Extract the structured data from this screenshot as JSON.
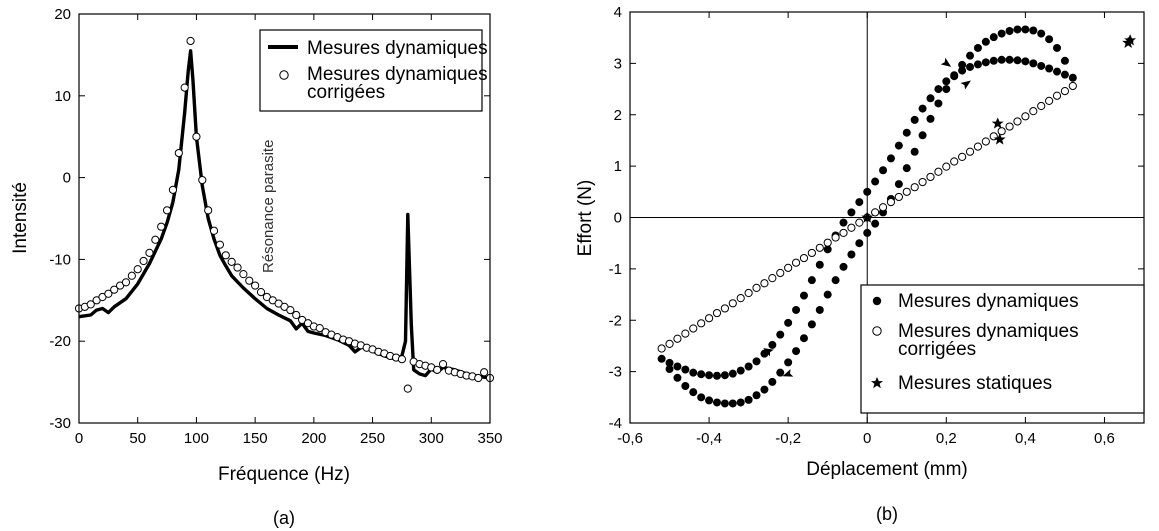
{
  "chart_data": [
    {
      "type": "line",
      "caption": "(a)",
      "xlabel": "Fréquence (Hz)",
      "ylabel": "Intensité",
      "xlim": [
        0,
        350
      ],
      "ylim": [
        -30,
        20
      ],
      "xticks": [
        "0",
        "50",
        "100",
        "150",
        "200",
        "250",
        "300",
        "350"
      ],
      "yticks": [
        "-30",
        "-20",
        "-10",
        "0",
        "10",
        "20"
      ],
      "legend_position": "top-right",
      "annotation": "Résonance parasite",
      "series": [
        {
          "name": "Mesures dynamiques",
          "style": "line",
          "x": [
            0,
            10,
            15,
            20,
            25,
            30,
            40,
            50,
            60,
            70,
            75,
            80,
            85,
            90,
            93,
            95,
            97,
            100,
            105,
            110,
            115,
            120,
            125,
            130,
            140,
            150,
            160,
            170,
            180,
            185,
            190,
            195,
            200,
            210,
            220,
            230,
            235,
            240,
            245,
            250,
            260,
            270,
            275,
            278,
            280,
            283,
            285,
            290,
            295,
            300,
            305,
            310,
            320,
            330,
            340,
            350
          ],
          "y": [
            -17,
            -16.8,
            -16.2,
            -16,
            -16.5,
            -15.8,
            -14.8,
            -13,
            -10.5,
            -7.5,
            -5.5,
            -3,
            1,
            8,
            13,
            15.5,
            12,
            5,
            -1,
            -5,
            -7.5,
            -9.5,
            -10.8,
            -12,
            -13.5,
            -14.8,
            -16,
            -16.8,
            -17.5,
            -18.5,
            -17.8,
            -18.8,
            -19,
            -19.3,
            -19.8,
            -20.5,
            -21.3,
            -20.8,
            -20.6,
            -21.2,
            -21.8,
            -22.2,
            -21.8,
            -20,
            -4.5,
            -18,
            -23.5,
            -24,
            -24.2,
            -23.4,
            -23.8,
            -23.2,
            -23.5,
            -24,
            -24.3,
            -24.5
          ]
        },
        {
          "name": "Mesures dynamiques corrigées",
          "style": "open-markers",
          "x": [
            0,
            5,
            10,
            15,
            20,
            25,
            30,
            35,
            40,
            45,
            50,
            55,
            60,
            65,
            70,
            75,
            80,
            85,
            90,
            95,
            100,
            105,
            110,
            115,
            120,
            125,
            130,
            135,
            140,
            145,
            150,
            155,
            160,
            165,
            170,
            175,
            180,
            185,
            190,
            195,
            200,
            205,
            210,
            215,
            220,
            225,
            230,
            235,
            240,
            245,
            250,
            255,
            260,
            265,
            270,
            275,
            280,
            285,
            290,
            295,
            300,
            305,
            310,
            315,
            320,
            325,
            330,
            335,
            340,
            345,
            350
          ],
          "y": [
            -16,
            -15.8,
            -15.5,
            -15,
            -14.6,
            -14.2,
            -13.7,
            -13.2,
            -12.8,
            -12,
            -11.2,
            -10.2,
            -9.2,
            -7.6,
            -6,
            -4,
            -1.5,
            3,
            11,
            16.7,
            5,
            -0.3,
            -4,
            -6.5,
            -8.2,
            -9.5,
            -10.3,
            -11,
            -11.8,
            -12.6,
            -13.2,
            -14,
            -14.6,
            -15,
            -15.4,
            -15.8,
            -16.2,
            -16.8,
            -17.4,
            -17.8,
            -18.2,
            -18.4,
            -18.9,
            -19.2,
            -19.5,
            -19.8,
            -20,
            -20.3,
            -20.5,
            -20.8,
            -21,
            -21.3,
            -21.5,
            -21.8,
            -22,
            -22.2,
            -25.8,
            -22.5,
            -22.8,
            -23,
            -23.2,
            -23.5,
            -22.8,
            -23.6,
            -23.8,
            -24,
            -24.2,
            -24.3,
            -24.5,
            -23.8,
            -24.5
          ]
        }
      ]
    },
    {
      "type": "scatter",
      "caption": "(b)",
      "xlabel": "Déplacement (mm)",
      "ylabel": "Effort (N)",
      "xlim": [
        -0.6,
        0.7
      ],
      "ylim": [
        -4,
        4
      ],
      "xticks": [
        "-0,6",
        "-0,4",
        "-0,2",
        "0",
        "0,2",
        "0,4",
        "0,6"
      ],
      "yticks": [
        "-4",
        "-3",
        "-2",
        "-1",
        "0",
        "1",
        "2",
        "3",
        "4"
      ],
      "legend_position": "bottom-right",
      "series": [
        {
          "name": "Mesures dynamiques",
          "style": "filled-markers",
          "x": [
            -0.52,
            -0.5,
            -0.48,
            -0.46,
            -0.44,
            -0.42,
            -0.4,
            -0.38,
            -0.36,
            -0.34,
            -0.32,
            -0.3,
            -0.28,
            -0.26,
            -0.24,
            -0.22,
            -0.2,
            -0.18,
            -0.16,
            -0.14,
            -0.12,
            -0.1,
            -0.08,
            -0.06,
            -0.04,
            -0.02,
            0,
            0.02,
            0.04,
            0.06,
            0.08,
            0.1,
            0.12,
            0.14,
            0.16,
            0.18,
            0.2,
            0.22,
            0.24,
            0.26,
            0.28,
            0.3,
            0.32,
            0.34,
            0.36,
            0.38,
            0.4,
            0.42,
            0.44,
            0.46,
            0.48,
            0.5,
            0.52,
            0.5,
            0.48,
            0.46,
            0.44,
            0.42,
            0.4,
            0.38,
            0.36,
            0.34,
            0.32,
            0.3,
            0.28,
            0.26,
            0.24,
            0.22,
            0.2,
            0.18,
            0.16,
            0.14,
            0.12,
            0.1,
            0.08,
            0.06,
            0.04,
            0.02,
            0,
            -0.02,
            -0.04,
            -0.06,
            -0.08,
            -0.1,
            -0.12,
            -0.14,
            -0.16,
            -0.18,
            -0.2,
            -0.22,
            -0.24,
            -0.26,
            -0.28,
            -0.3,
            -0.32,
            -0.34,
            -0.36,
            -0.38,
            -0.4,
            -0.42,
            -0.44,
            -0.46,
            -0.48,
            -0.5
          ],
          "y": [
            -2.75,
            -2.83,
            -2.9,
            -2.96,
            -3.02,
            -3.05,
            -3.07,
            -3.08,
            -3.07,
            -3.04,
            -2.98,
            -2.9,
            -2.8,
            -2.65,
            -2.48,
            -2.28,
            -2.05,
            -1.8,
            -1.52,
            -1.22,
            -0.92,
            -0.62,
            -0.35,
            -0.1,
            0.1,
            0.3,
            0.5,
            0.7,
            0.92,
            1.15,
            1.4,
            1.65,
            1.9,
            2.12,
            2.32,
            2.5,
            2.65,
            2.77,
            2.86,
            2.93,
            2.98,
            3.02,
            3.05,
            3.07,
            3.07,
            3.06,
            3.04,
            3,
            2.95,
            2.9,
            2.84,
            2.78,
            2.72,
            3.05,
            3.3,
            3.47,
            3.58,
            3.64,
            3.66,
            3.66,
            3.63,
            3.58,
            3.51,
            3.42,
            3.3,
            3.15,
            2.97,
            2.75,
            2.5,
            2.22,
            1.92,
            1.6,
            1.28,
            0.96,
            0.65,
            0.36,
            0.1,
            -0.12,
            -0.3,
            -0.5,
            -0.72,
            -0.96,
            -1.22,
            -1.5,
            -1.8,
            -2.08,
            -2.35,
            -2.6,
            -2.82,
            -3.02,
            -3.2,
            -3.35,
            -3.46,
            -3.55,
            -3.6,
            -3.62,
            -3.62,
            -3.6,
            -3.56,
            -3.5,
            -3.4,
            -3.28,
            -3.12,
            -2.95
          ]
        },
        {
          "name": "Mesures dynamiques corrigées",
          "style": "open-markers",
          "x": [
            -0.52,
            -0.5,
            -0.48,
            -0.46,
            -0.44,
            -0.42,
            -0.4,
            -0.38,
            -0.36,
            -0.34,
            -0.32,
            -0.3,
            -0.28,
            -0.26,
            -0.24,
            -0.22,
            -0.2,
            -0.18,
            -0.16,
            -0.14,
            -0.12,
            -0.1,
            -0.08,
            -0.06,
            -0.04,
            -0.02,
            0,
            0.02,
            0.04,
            0.06,
            0.08,
            0.1,
            0.12,
            0.14,
            0.16,
            0.18,
            0.2,
            0.22,
            0.24,
            0.26,
            0.28,
            0.3,
            0.32,
            0.34,
            0.36,
            0.38,
            0.4,
            0.42,
            0.44,
            0.46,
            0.48,
            0.5,
            0.52
          ],
          "y": [
            -2.55,
            -2.46,
            -2.36,
            -2.26,
            -2.16,
            -2.06,
            -1.96,
            -1.86,
            -1.77,
            -1.67,
            -1.57,
            -1.47,
            -1.37,
            -1.28,
            -1.18,
            -1.08,
            -0.98,
            -0.88,
            -0.79,
            -0.69,
            -0.59,
            -0.49,
            -0.39,
            -0.3,
            -0.2,
            -0.1,
            0,
            0.1,
            0.2,
            0.3,
            0.4,
            0.5,
            0.59,
            0.69,
            0.79,
            0.89,
            0.99,
            1.09,
            1.18,
            1.28,
            1.38,
            1.48,
            1.58,
            1.68,
            1.77,
            1.87,
            1.97,
            2.07,
            2.17,
            2.27,
            2.37,
            2.46,
            2.56
          ]
        },
        {
          "name": "Mesures statiques",
          "style": "star-markers",
          "x": [
            0,
            0.33,
            0.335,
            0.66,
            0.665
          ],
          "y": [
            0,
            1.83,
            1.52,
            3.4,
            3.45
          ]
        }
      ]
    }
  ]
}
